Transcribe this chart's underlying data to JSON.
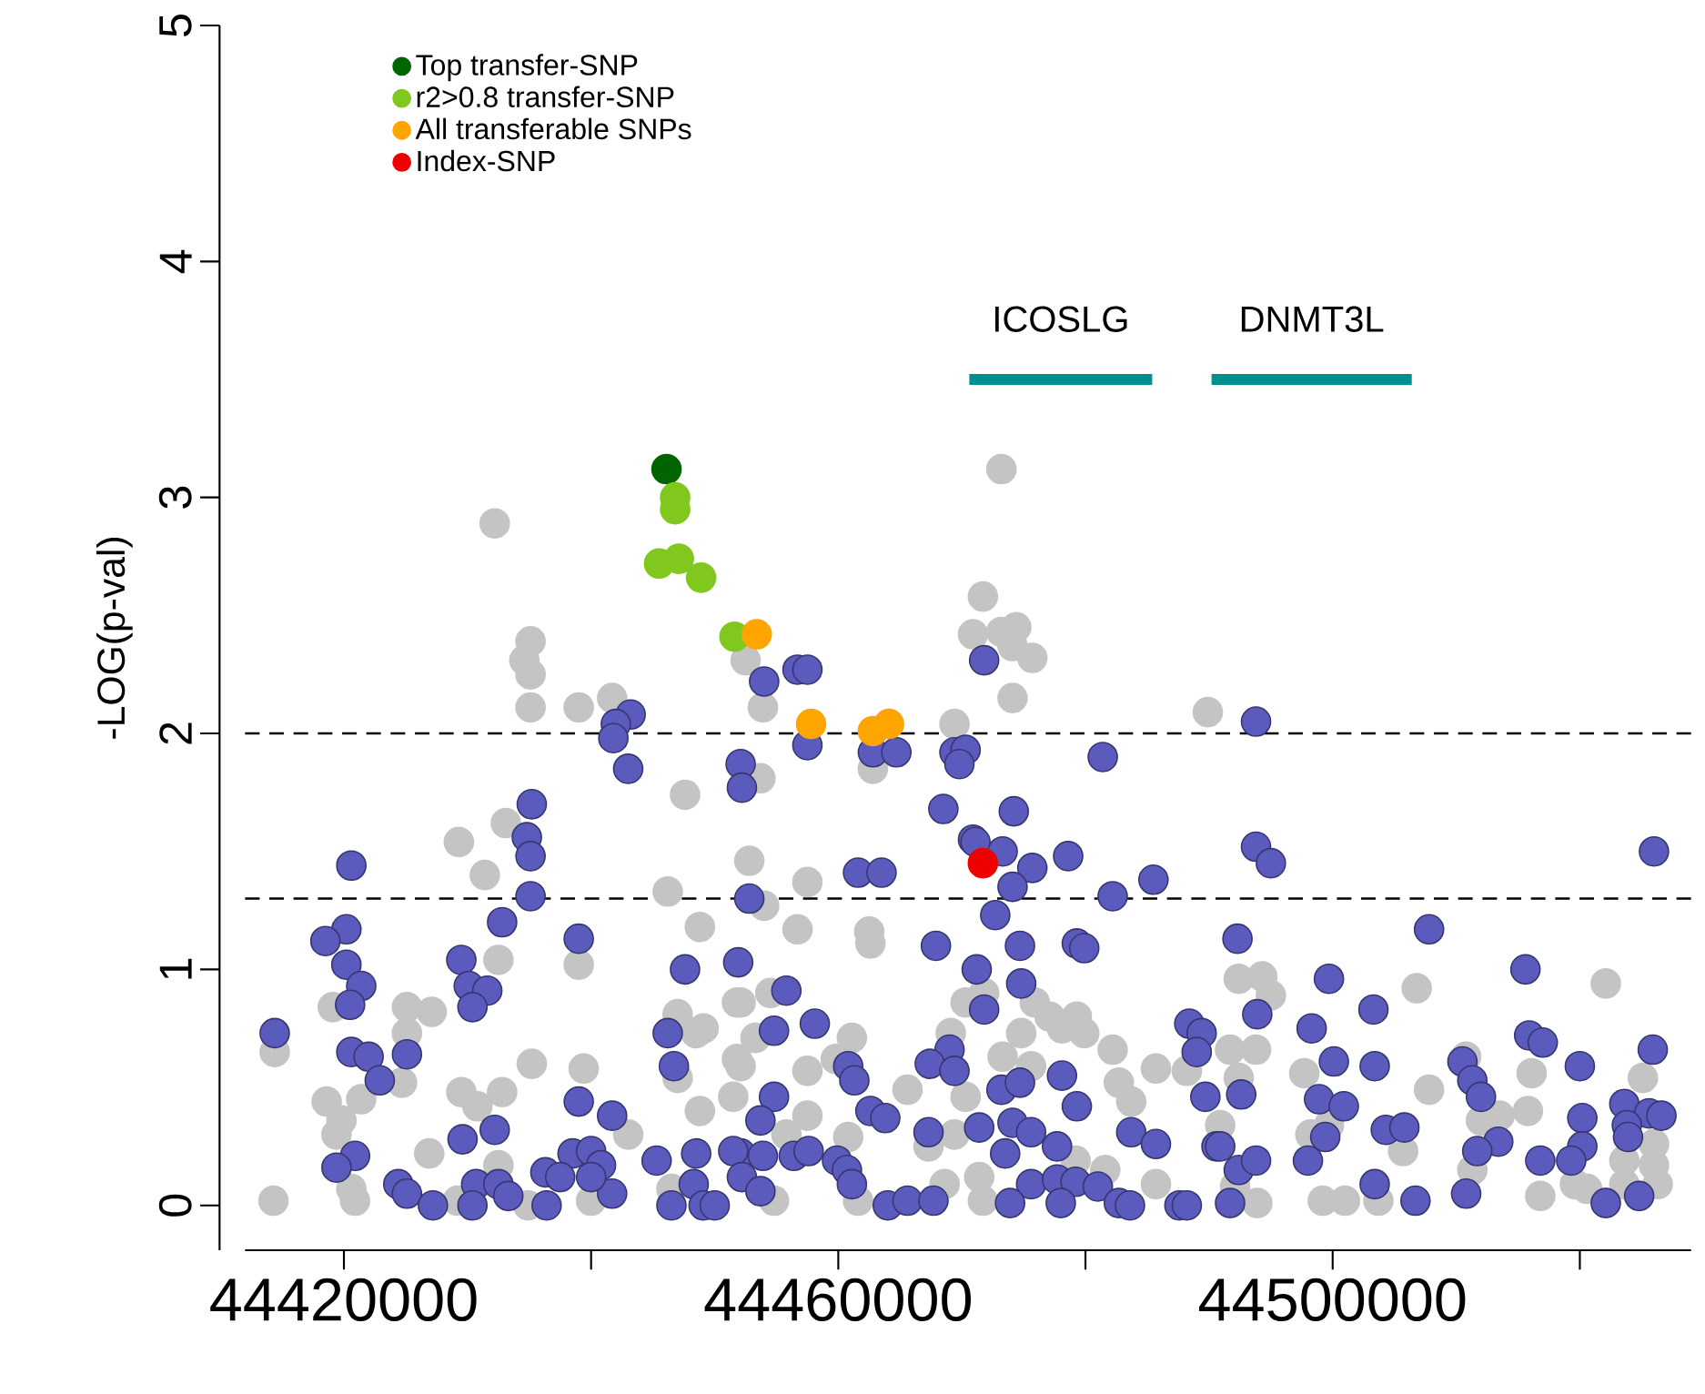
{
  "chart_data": {
    "type": "scatter",
    "ylabel": "-LOG(p-val)",
    "marker": "circle",
    "legend": "top left",
    "xlim": [
      44412000,
      44529000
    ],
    "ylim": [
      -0.19,
      5
    ],
    "xticks": [
      44420000,
      {
        "value": 44440000,
        "label": null
      },
      44460000,
      {
        "value": 44480000,
        "label": null
      },
      44500000,
      {
        "value": 44520000,
        "label": null
      }
    ],
    "yticks": [
      0,
      1,
      2,
      3,
      4,
      5
    ],
    "ref_lines": [
      {
        "axis": "y",
        "value": 2,
        "line_style": "dashed",
        "color": "#000000"
      },
      {
        "axis": "y",
        "value": 1.3,
        "line_style": "dashed",
        "color": "#000000"
      }
    ],
    "series": [
      {
        "color": "#c4c4c4",
        "x": [
          44432200,
          44435100,
          44434600,
          44435100,
          44435100,
          44439000,
          44441700,
          44447600,
          44433100,
          44473200,
          44471700,
          44470900,
          44473200,
          44474400,
          44474100,
          44475700,
          44474100,
          44452500,
          44453900,
          44469400,
          44489900,
          44462800,
          44453700,
          44429300,
          44431400,
          44446200,
          44448800,
          44439000,
          44432500,
          44425100,
          44427100,
          44425100,
          44419100,
          44414400,
          44435200,
          44439400,
          44424700,
          44418600,
          44421400,
          44429500,
          44432800,
          44430800,
          44419800,
          44419400,
          44426900,
          44443000,
          44448800,
          44447000,
          44449100,
          44447000,
          44452100,
          44420600,
          44420900,
          44429200,
          44432500,
          44434900,
          44440000,
          44446500,
          44451500,
          44452100,
          44448500,
          44452800,
          44457500,
          44454000,
          44456700,
          44462500,
          44462600,
          44451800,
          44454500,
          44470300,
          44471800,
          44475900,
          44477100,
          44479300,
          44478100,
          44479900,
          44469100,
          44474800,
          44453300,
          44461100,
          44451800,
          44459800,
          44473300,
          44475600,
          44482200,
          44485700,
          44457500,
          44465600,
          44470300,
          44482700,
          44483700,
          44457500,
          44467300,
          44469400,
          44455800,
          44460800,
          44479200,
          44481600,
          44471400,
          44485700,
          44468600,
          44454800,
          44471700,
          44461600,
          44488200,
          44492400,
          44494300,
          44495000,
          44506800,
          44522100,
          44491700,
          44493800,
          44497700,
          44492400,
          44507800,
          44516100,
          44525100,
          44510800,
          44490900,
          44498200,
          44499700,
          44505700,
          44512000,
          44513500,
          44515800,
          44511300,
          44516800,
          44519600,
          44520600,
          44523600,
          44526000,
          44523600,
          44526300,
          44499200,
          44501000,
          44503700,
          44493900,
          44492100,
          44526000,
          44414300
        ],
        "values": [
          2.89,
          2.39,
          2.31,
          2.25,
          2.11,
          2.11,
          2.15,
          1.74,
          1.62,
          3.12,
          2.58,
          2.42,
          2.43,
          2.45,
          2.37,
          2.32,
          2.15,
          2.31,
          2.11,
          2.04,
          2.09,
          1.85,
          1.81,
          1.54,
          1.4,
          1.33,
          1.18,
          1.02,
          1.04,
          0.84,
          0.82,
          0.73,
          0.84,
          0.65,
          0.6,
          0.58,
          0.52,
          0.44,
          0.45,
          0.48,
          0.48,
          0.42,
          0.36,
          0.3,
          0.22,
          0.3,
          0.4,
          0.81,
          0.75,
          0.54,
          0.59,
          0.07,
          0.02,
          0.02,
          0.17,
          0.0,
          0.02,
          0.07,
          0.46,
          0.86,
          0.73,
          1.46,
          1.37,
          1.27,
          1.17,
          1.16,
          1.11,
          0.86,
          0.9,
          0.86,
          0.9,
          0.86,
          0.8,
          0.8,
          0.75,
          0.73,
          0.73,
          0.73,
          0.71,
          0.71,
          0.62,
          0.62,
          0.63,
          0.59,
          0.66,
          0.58,
          0.57,
          0.49,
          0.46,
          0.52,
          0.44,
          0.38,
          0.25,
          0.3,
          0.3,
          0.29,
          0.19,
          0.15,
          0.12,
          0.09,
          0.09,
          0.02,
          0.02,
          0.02,
          0.57,
          0.96,
          0.97,
          0.89,
          0.92,
          0.94,
          0.66,
          0.66,
          0.56,
          0.54,
          0.49,
          0.56,
          0.54,
          0.63,
          0.34,
          0.3,
          0.34,
          0.23,
          0.36,
          0.38,
          0.4,
          0.15,
          0.04,
          0.09,
          0.07,
          0.19,
          0.17,
          0.09,
          0.09,
          0.02,
          0.02,
          0.02,
          0.01,
          0.08,
          0.26,
          0.02
        ]
      },
      {
        "color": "#5b5bbd",
        "x": [
          44443200,
          44442000,
          44441800,
          44443000,
          44435200,
          44434800,
          44452100,
          44452200,
          44471800,
          44454000,
          44456700,
          44457500,
          44457500,
          44462800,
          44464700,
          44469400,
          44470300,
          44469800,
          44468500,
          44474200,
          44481400,
          44470900,
          44493800,
          44420600,
          44435100,
          44435100,
          44432800,
          44439000,
          44420200,
          44418500,
          44420200,
          44421400,
          44420500,
          44429500,
          44430100,
          44431600,
          44430400,
          44414400,
          44420600,
          44422000,
          44422900,
          44425100,
          44447600,
          44446200,
          44446700,
          44439000,
          44441700,
          44429600,
          44432200,
          44438500,
          44440000,
          44440800,
          44445300,
          44448500,
          44452100,
          44420900,
          44419400,
          44424400,
          44425100,
          44427200,
          44430700,
          44432500,
          44433300,
          44430400,
          44436300,
          44437500,
          44436400,
          44441700,
          44446500,
          44448300,
          44449100,
          44450000,
          44440000,
          44471100,
          44473300,
          44478600,
          44475700,
          44474100,
          44461600,
          44463500,
          44485500,
          44482200,
          44452800,
          44472700,
          44467900,
          44474700,
          44479300,
          44479900,
          44451900,
          44471200,
          44474800,
          44455800,
          44471800,
          44458100,
          44454800,
          44488400,
          44489400,
          44489000,
          44469000,
          44467400,
          44469400,
          44460800,
          44461300,
          44478100,
          44473200,
          44474700,
          44479300,
          44489700,
          44454800,
          44462600,
          44463800,
          44453700,
          44467300,
          44471400,
          44474100,
          44475600,
          44473500,
          44477700,
          44483700,
          44485700,
          44490600,
          44451500,
          44453900,
          44456400,
          44457600,
          44459900,
          44460700,
          44461100,
          44452200,
          44453700,
          44475600,
          44477700,
          44479200,
          44481000,
          44464000,
          44465600,
          44467700,
          44473900,
          44478000,
          44482700,
          44483600,
          44487600,
          44488200,
          44493800,
          44495000,
          44526000,
          44492300,
          44507800,
          44499700,
          44503300,
          44515600,
          44493900,
          44498300,
          44515900,
          44517000,
          44500100,
          44503400,
          44510500,
          44520000,
          44525900,
          44511300,
          44512000,
          44492600,
          44498900,
          44500900,
          44520200,
          44523600,
          44525600,
          44526600,
          44523800,
          44523900,
          44504300,
          44505800,
          44513400,
          44511700,
          44520200,
          44490900,
          44499400,
          44498000,
          44492400,
          44493800,
          44516800,
          44519300,
          44503400,
          44510800,
          44524800,
          44491700,
          44506700,
          44522100
        ],
        "values": [
          2.08,
          2.04,
          1.98,
          1.85,
          1.7,
          1.56,
          1.87,
          1.77,
          2.31,
          2.22,
          2.27,
          2.27,
          1.95,
          1.92,
          1.92,
          1.92,
          1.93,
          1.87,
          1.68,
          1.67,
          1.9,
          1.55,
          2.05,
          1.44,
          1.48,
          1.31,
          1.2,
          1.13,
          1.17,
          1.12,
          1.02,
          0.93,
          0.85,
          1.04,
          0.93,
          0.91,
          0.84,
          0.73,
          0.65,
          0.63,
          0.53,
          0.64,
          1.0,
          0.73,
          0.59,
          0.44,
          0.38,
          0.28,
          0.32,
          0.22,
          0.23,
          0.17,
          0.19,
          0.22,
          0.22,
          0.21,
          0.16,
          0.09,
          0.05,
          0.0,
          0.09,
          0.09,
          0.04,
          0.0,
          0.14,
          0.12,
          0.0,
          0.05,
          0.0,
          0.09,
          0.0,
          0.0,
          0.12,
          1.54,
          1.5,
          1.48,
          1.43,
          1.35,
          1.41,
          1.41,
          1.38,
          1.31,
          1.3,
          1.23,
          1.1,
          1.1,
          1.11,
          1.09,
          1.03,
          1.0,
          0.94,
          0.91,
          0.83,
          0.77,
          0.74,
          0.77,
          0.73,
          0.65,
          0.66,
          0.6,
          0.57,
          0.59,
          0.53,
          0.55,
          0.49,
          0.52,
          0.42,
          0.46,
          0.46,
          0.4,
          0.37,
          0.36,
          0.31,
          0.33,
          0.35,
          0.31,
          0.22,
          0.25,
          0.31,
          0.26,
          0.25,
          0.23,
          0.21,
          0.21,
          0.23,
          0.19,
          0.15,
          0.09,
          0.12,
          0.06,
          0.09,
          0.11,
          0.1,
          0.08,
          0.0,
          0.02,
          0.02,
          0.01,
          0.01,
          0.01,
          0.0,
          0.0,
          0.0,
          1.52,
          1.45,
          1.5,
          1.13,
          1.17,
          0.96,
          0.83,
          1.0,
          0.81,
          0.75,
          0.72,
          0.69,
          0.61,
          0.59,
          0.61,
          0.59,
          0.66,
          0.53,
          0.46,
          0.47,
          0.45,
          0.42,
          0.37,
          0.43,
          0.39,
          0.38,
          0.34,
          0.29,
          0.32,
          0.33,
          0.27,
          0.23,
          0.25,
          0.25,
          0.29,
          0.19,
          0.15,
          0.19,
          0.19,
          0.19,
          0.09,
          0.05,
          0.04,
          0.01,
          0.02,
          0.01
        ]
      },
      {
        "name": "Top transfer-SNP",
        "color": "#006400",
        "x": [
          44446100
        ],
        "values": [
          3.12
        ]
      },
      {
        "name": "r2>0.8 transfer-SNP",
        "color": "#80c81e",
        "x": [
          44446800,
          44446800,
          44445500,
          44447100,
          44448900,
          44451600
        ],
        "values": [
          3.0,
          2.95,
          2.72,
          2.74,
          2.66,
          2.41
        ]
      },
      {
        "name": "All transferable SNPs",
        "color": "#ffa500",
        "x": [
          44453400,
          44457800,
          44462800,
          44464100
        ],
        "values": [
          2.42,
          2.04,
          2.01,
          2.04
        ]
      },
      {
        "name": "Index-SNP",
        "color": "#ee0000",
        "x": [
          44471700
        ],
        "values": [
          1.45
        ]
      },
      {
        "name": "ICOSLG",
        "type": "line",
        "line_style": "solid",
        "marker": "none",
        "color": "#009090",
        "x": [
          44470600,
          44485400
        ],
        "values": [
          3.5,
          3.5
        ]
      },
      {
        "name": "DNMT3L",
        "type": "line",
        "line_style": "solid",
        "marker": "none",
        "color": "#009090",
        "x": [
          44490200,
          44506400
        ],
        "values": [
          3.5,
          3.5
        ]
      }
    ]
  }
}
